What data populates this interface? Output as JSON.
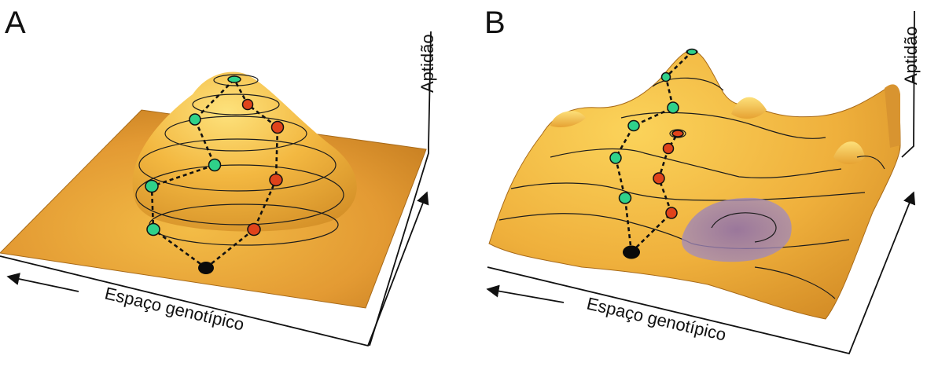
{
  "panels": [
    {
      "id": "A",
      "letter": "A",
      "x_axis_label": "Espaço genotípico",
      "y_axis_label": "Aptidão",
      "landscape": "single-peak",
      "path_colors": {
        "green": "#2fd18a",
        "red": "#e0431b",
        "start": "#0a0a0a"
      }
    },
    {
      "id": "B",
      "letter": "B",
      "x_axis_label": "Espaço genotípico",
      "y_axis_label": "Aptidão",
      "landscape": "rugged-multi-peak",
      "path_colors": {
        "green": "#2fd18a",
        "red": "#e0431b",
        "start": "#0a0a0a"
      },
      "shaded_region_color": "#9a78b4"
    }
  ],
  "colors": {
    "surface_light": "#f7c64a",
    "surface_mid": "#eaa435",
    "surface_dark": "#c7801e",
    "contour": "#1c1c1c"
  }
}
